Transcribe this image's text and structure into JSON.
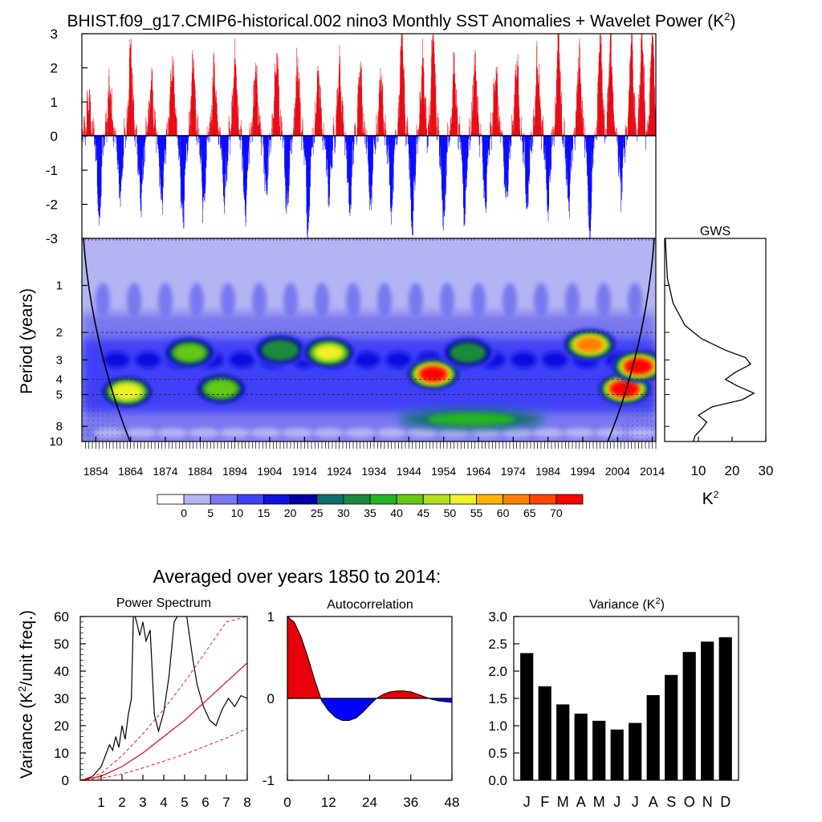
{
  "figure": {
    "title_main": "BHIST.f09_g17.CMIP6-historical.002 nino3 Monthly SST Anomalies + Wavelet Power (K",
    "title_sup": "2",
    "title_end": ")"
  },
  "chart_data": [
    {
      "id": "anomaly",
      "type": "bar",
      "title": "nino3 Monthly SST Anomalies",
      "xlim": [
        1850,
        2015
      ],
      "ylim": [
        -3,
        3
      ],
      "yticks": [
        "3",
        "2",
        "1",
        "0",
        "-1",
        "-2",
        "-3"
      ],
      "ytick_values": [
        3,
        2,
        1,
        0,
        -1,
        -2,
        -3
      ],
      "positive_color": "#e8000b",
      "negative_color": "#0000ff",
      "events": [
        {
          "year": 1852.0,
          "amp": 1.1
        },
        {
          "year": 1855.0,
          "amp": -2.3
        },
        {
          "year": 1858.0,
          "amp": 1.4
        },
        {
          "year": 1861.0,
          "amp": -1.8
        },
        {
          "year": 1864.0,
          "amp": 2.6
        },
        {
          "year": 1867.0,
          "amp": -2.0
        },
        {
          "year": 1870.0,
          "amp": 1.5
        },
        {
          "year": 1873.0,
          "amp": -1.9
        },
        {
          "year": 1876.0,
          "amp": 2.2
        },
        {
          "year": 1879.0,
          "amp": -2.5
        },
        {
          "year": 1882.0,
          "amp": 2.3
        },
        {
          "year": 1885.0,
          "amp": -2.1
        },
        {
          "year": 1888.0,
          "amp": 2.0
        },
        {
          "year": 1891.0,
          "amp": -1.7
        },
        {
          "year": 1894.0,
          "amp": 2.3
        },
        {
          "year": 1897.0,
          "amp": -2.2
        },
        {
          "year": 1900.0,
          "amp": 1.8
        },
        {
          "year": 1903.0,
          "amp": -1.5
        },
        {
          "year": 1906.0,
          "amp": 2.4
        },
        {
          "year": 1909.0,
          "amp": -2.0
        },
        {
          "year": 1912.0,
          "amp": 2.2
        },
        {
          "year": 1915.0,
          "amp": -2.6
        },
        {
          "year": 1918.0,
          "amp": 1.9
        },
        {
          "year": 1921.0,
          "amp": -1.8
        },
        {
          "year": 1924.0,
          "amp": 2.1
        },
        {
          "year": 1927.0,
          "amp": -2.3
        },
        {
          "year": 1930.0,
          "amp": 2.0
        },
        {
          "year": 1933.0,
          "amp": -2.0
        },
        {
          "year": 1936.0,
          "amp": 1.7
        },
        {
          "year": 1939.0,
          "amp": -2.2
        },
        {
          "year": 1942.0,
          "amp": 3.0
        },
        {
          "year": 1945.0,
          "amp": -2.7
        },
        {
          "year": 1948.0,
          "amp": 2.3
        },
        {
          "year": 1951.0,
          "amp": 3.0
        },
        {
          "year": 1954.0,
          "amp": -2.4
        },
        {
          "year": 1957.0,
          "amp": 2.0
        },
        {
          "year": 1960.0,
          "amp": -2.3
        },
        {
          "year": 1963.0,
          "amp": 2.2
        },
        {
          "year": 1966.0,
          "amp": -2.1
        },
        {
          "year": 1969.0,
          "amp": 2.0
        },
        {
          "year": 1972.0,
          "amp": -1.9
        },
        {
          "year": 1975.0,
          "amp": 2.2
        },
        {
          "year": 1978.0,
          "amp": -2.0
        },
        {
          "year": 1981.0,
          "amp": 2.3
        },
        {
          "year": 1984.0,
          "amp": -2.2
        },
        {
          "year": 1987.0,
          "amp": 3.0
        },
        {
          "year": 1990.0,
          "amp": -2.1
        },
        {
          "year": 1993.0,
          "amp": 2.4
        },
        {
          "year": 1996.0,
          "amp": -2.8
        },
        {
          "year": 1999.0,
          "amp": 3.0
        },
        {
          "year": 2002.0,
          "amp": 2.8
        },
        {
          "year": 2005.0,
          "amp": -1.6
        },
        {
          "year": 2008.0,
          "amp": 3.0
        },
        {
          "year": 2011.0,
          "amp": 3.0
        },
        {
          "year": 2014.0,
          "amp": 2.9
        }
      ]
    },
    {
      "id": "wavelet",
      "type": "heatmap",
      "ylabel": "Period (years)",
      "period_range": [
        0.5,
        10
      ],
      "yticks": [
        "1",
        "2",
        "3",
        "4",
        "5",
        "8",
        "10"
      ],
      "ytick_values": [
        1,
        2,
        3,
        4,
        5,
        8,
        10
      ],
      "dashed_periods": [
        2,
        4,
        5
      ],
      "xtick_labels": [
        "1854",
        "1864",
        "1874",
        "1884",
        "1894",
        "1904",
        "1914",
        "1924",
        "1934",
        "1944",
        "1954",
        "1964",
        "1974",
        "1984",
        "1994",
        "2004",
        "2014"
      ],
      "xtick_values": [
        1854,
        1864,
        1874,
        1884,
        1894,
        1904,
        1914,
        1924,
        1934,
        1944,
        1954,
        1964,
        1974,
        1984,
        1994,
        2004,
        2014
      ],
      "xlim": [
        1850,
        2015
      ],
      "power_blobs": [
        {
          "year": 1863,
          "period": 4.8,
          "power": 55
        },
        {
          "year": 1881,
          "period": 2.7,
          "power": 40
        },
        {
          "year": 1890,
          "period": 4.6,
          "power": 42
        },
        {
          "year": 1907,
          "period": 2.6,
          "power": 38
        },
        {
          "year": 1921,
          "period": 2.7,
          "power": 50
        },
        {
          "year": 1951,
          "period": 3.7,
          "power": 70
        },
        {
          "year": 1961,
          "period": 2.7,
          "power": 35
        },
        {
          "year": 1996,
          "period": 2.4,
          "power": 62
        },
        {
          "year": 2006,
          "period": 4.6,
          "power": 75
        },
        {
          "year": 2010,
          "period": 3.3,
          "power": 72
        }
      ]
    },
    {
      "id": "gws",
      "type": "line",
      "title": "GWS",
      "xlabel": "K",
      "xlabel_sup": "2",
      "xlim": [
        0,
        30
      ],
      "xtick_labels": [
        "10",
        "20",
        "30"
      ],
      "xtick_values": [
        10,
        20,
        30
      ],
      "period": [
        0.5,
        0.9,
        1.3,
        1.8,
        2.2,
        2.6,
        2.9,
        3.2,
        3.6,
        4.0,
        4.4,
        4.9,
        5.4,
        6.0,
        6.8,
        7.5,
        8.3,
        9.2,
        10.0
      ],
      "power": [
        0.2,
        0.8,
        2.5,
        6.0,
        11.0,
        18.0,
        24.0,
        25.5,
        21.0,
        18.0,
        21.5,
        26.5,
        23.0,
        14.0,
        10.0,
        12.5,
        11.0,
        9.0,
        8.5
      ]
    },
    {
      "id": "colorbar",
      "type": "table",
      "labels": [
        "0",
        "5",
        "10",
        "15",
        "20",
        "25",
        "30",
        "35",
        "40",
        "45",
        "50",
        "55",
        "60",
        "65",
        "70"
      ],
      "colors": [
        "#ffffff",
        "#b4b4f4",
        "#7878f0",
        "#4040f8",
        "#1010e0",
        "#0000a8",
        "#106e6e",
        "#1c8a3a",
        "#22b422",
        "#66c814",
        "#aee01c",
        "#f0f028",
        "#ffb400",
        "#ff8000",
        "#ff4600",
        "#ff0000"
      ]
    },
    {
      "id": "power_spectrum",
      "type": "line",
      "title": "Power Spectrum",
      "ylabel": "Variance (K",
      "ylabel_sup": "2",
      "ylabel_end": "/unit freq.)",
      "xlim": [
        0,
        8
      ],
      "ylim": [
        0,
        60
      ],
      "xtick_labels": [
        "1",
        "2",
        "3",
        "4",
        "5",
        "6",
        "7",
        "8"
      ],
      "xtick_values": [
        1,
        2,
        3,
        4,
        5,
        6,
        7,
        8
      ],
      "ytick_labels": [
        "0",
        "10",
        "20",
        "30",
        "40",
        "50",
        "60"
      ],
      "ytick_values": [
        0,
        10,
        20,
        30,
        40,
        50,
        60
      ],
      "series": [
        {
          "name": "spectrum",
          "color": "#000000",
          "style": "solid",
          "x": [
            0.2,
            0.6,
            1.0,
            1.2,
            1.4,
            1.55,
            1.7,
            1.85,
            2.0,
            2.15,
            2.3,
            2.45,
            2.55,
            2.7,
            2.85,
            3.0,
            3.15,
            3.35,
            3.55,
            3.75,
            4.0,
            4.25,
            4.5,
            4.8,
            5.1,
            5.4,
            5.6,
            5.9,
            6.2,
            6.5,
            6.8,
            7.1,
            7.4,
            7.7,
            8.0
          ],
          "y": [
            0.2,
            1.5,
            5,
            9,
            13,
            11,
            16,
            12,
            20,
            15,
            24,
            30,
            62,
            58,
            53,
            58,
            51,
            55,
            24,
            18,
            25,
            38,
            58,
            62,
            60,
            44,
            35,
            27,
            22,
            20,
            26,
            30,
            27,
            31,
            30
          ]
        },
        {
          "name": "red noise",
          "color": "#e8000b",
          "style": "solid",
          "x": [
            0,
            1,
            2,
            3,
            4,
            5,
            6,
            7,
            8
          ],
          "y": [
            0,
            1.5,
            5,
            10,
            16,
            22,
            29,
            36,
            43
          ]
        },
        {
          "name": "95%",
          "color": "#e8000b",
          "style": "dashed",
          "x": [
            0,
            1,
            2,
            3,
            4,
            5,
            6,
            7,
            8
          ],
          "y": [
            0,
            2.5,
            9,
            17,
            26,
            36,
            47,
            58,
            60
          ]
        },
        {
          "name": "5%",
          "color": "#e8000b",
          "style": "dashed",
          "x": [
            0,
            1,
            2,
            3,
            4,
            5,
            6,
            7,
            8
          ],
          "y": [
            0,
            0.7,
            2.3,
            4.5,
            7,
            9.5,
            12.5,
            15.5,
            19
          ]
        }
      ]
    },
    {
      "id": "autocorrelation",
      "type": "area",
      "title": "Autocorrelation",
      "xlim": [
        0,
        48
      ],
      "ylim": [
        -1,
        1
      ],
      "xtick_labels": [
        "0",
        "12",
        "24",
        "36",
        "48"
      ],
      "xtick_values": [
        0,
        12,
        24,
        36,
        48
      ],
      "ytick_labels": [
        "1",
        "0",
        "-1"
      ],
      "ytick_values": [
        1,
        0,
        -1
      ],
      "positive_color": "#e8000b",
      "negative_color": "#0000ff",
      "lag": [
        0,
        2,
        4,
        6,
        8,
        10,
        12,
        14,
        16,
        18,
        20,
        22,
        24,
        26,
        28,
        30,
        32,
        34,
        36,
        38,
        40,
        42,
        44,
        46,
        48
      ],
      "acf": [
        1.0,
        0.93,
        0.75,
        0.5,
        0.22,
        -0.03,
        -0.15,
        -0.23,
        -0.27,
        -0.27,
        -0.24,
        -0.17,
        -0.08,
        0.0,
        0.05,
        0.08,
        0.09,
        0.09,
        0.08,
        0.05,
        0.02,
        -0.01,
        -0.03,
        -0.04,
        -0.05
      ]
    },
    {
      "id": "variance",
      "type": "bar",
      "title": "Variance (K",
      "title_sup": "2",
      "title_end": ")",
      "ylim": [
        0,
        3
      ],
      "ytick_labels": [
        "0.0",
        "0.5",
        "1.0",
        "1.5",
        "2.0",
        "2.5",
        "3.0"
      ],
      "ytick_values": [
        0,
        0.5,
        1.0,
        1.5,
        2.0,
        2.5,
        3.0
      ],
      "categories": [
        "J",
        "F",
        "M",
        "A",
        "M",
        "J",
        "J",
        "A",
        "S",
        "O",
        "N",
        "D"
      ],
      "values": [
        2.33,
        1.72,
        1.39,
        1.22,
        1.09,
        0.93,
        1.05,
        1.56,
        1.93,
        2.35,
        2.54,
        2.62
      ]
    }
  ],
  "averaged": {
    "caption": "Averaged over years 1850 to 2014:"
  }
}
